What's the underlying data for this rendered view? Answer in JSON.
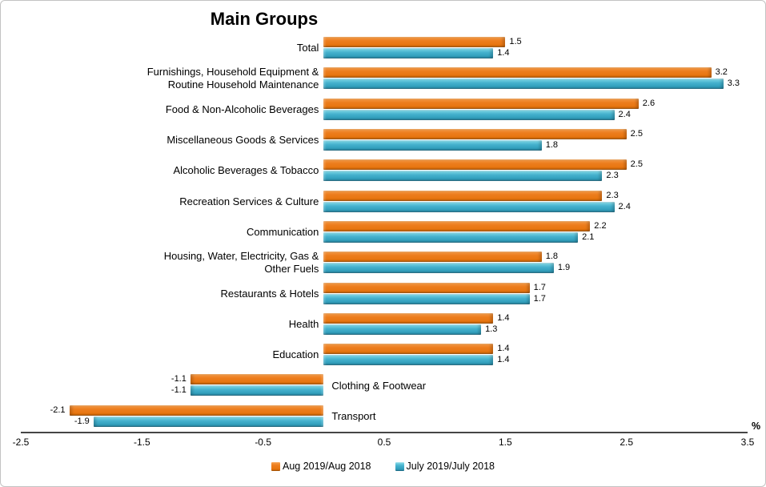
{
  "chart_data": {
    "type": "bar",
    "orientation": "horizontal",
    "title": "Main Groups",
    "unit_label": "%",
    "categories": [
      "Total",
      "Furnishings, Household Equipment &\nRoutine Household Maintenance",
      "Food &  Non-Alcoholic Beverages",
      "Miscellaneous Goods & Services",
      "Alcoholic Beverages  & Tobacco",
      "Recreation Services & Culture",
      "Communication",
      "Housing, Water, Electricity, Gas &\nOther Fuels",
      "Restaurants & Hotels",
      "Health",
      "Education",
      "Clothing & Footwear",
      "Transport"
    ],
    "series": [
      {
        "name": "Aug 2019/Aug 2018",
        "color": "#EC7D1D",
        "values": [
          1.5,
          3.2,
          2.6,
          2.5,
          2.5,
          2.3,
          2.2,
          1.8,
          1.7,
          1.4,
          1.4,
          -1.1,
          -2.1
        ]
      },
      {
        "name": "July 2019/July 2018",
        "color": "#3FA9C6",
        "values": [
          1.4,
          3.3,
          2.4,
          1.8,
          2.3,
          2.4,
          2.1,
          1.9,
          1.7,
          1.3,
          1.4,
          -1.1,
          -1.9
        ]
      }
    ],
    "xlim": [
      -2.5,
      3.5
    ],
    "x_ticks": [
      -2.5,
      -1.5,
      -0.5,
      0.5,
      1.5,
      2.5,
      3.5
    ],
    "grid": false,
    "legend_position": "bottom",
    "colors": {
      "axis_line": "#464646",
      "chart_border": "#C3C3C3",
      "text": "#000000"
    }
  }
}
